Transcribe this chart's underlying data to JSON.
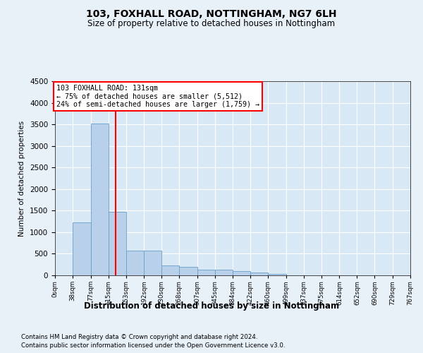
{
  "title1": "103, FOXHALL ROAD, NOTTINGHAM, NG7 6LH",
  "title2": "Size of property relative to detached houses in Nottingham",
  "xlabel": "Distribution of detached houses by size in Nottingham",
  "ylabel": "Number of detached properties",
  "annotation_line1": "103 FOXHALL ROAD: 131sqm",
  "annotation_line2": "← 75% of detached houses are smaller (5,512)",
  "annotation_line3": "24% of semi-detached houses are larger (1,759) →",
  "bar_edges": [
    0,
    38,
    77,
    115,
    153,
    192,
    230,
    268,
    307,
    345,
    384,
    422,
    460,
    499,
    537,
    575,
    614,
    652,
    690,
    729,
    767
  ],
  "bar_heights": [
    5,
    1230,
    3510,
    1470,
    570,
    570,
    230,
    200,
    130,
    130,
    100,
    65,
    40,
    5,
    5,
    0,
    5,
    0,
    0,
    0
  ],
  "bar_color": "#b8d0ea",
  "bar_edge_color": "#6a9fc8",
  "red_line_x": 131,
  "ylim": [
    0,
    4500
  ],
  "xlim": [
    0,
    767
  ],
  "yticks": [
    0,
    500,
    1000,
    1500,
    2000,
    2500,
    3000,
    3500,
    4000,
    4500
  ],
  "tick_labels": [
    "0sqm",
    "38sqm",
    "77sqm",
    "115sqm",
    "153sqm",
    "192sqm",
    "230sqm",
    "268sqm",
    "307sqm",
    "345sqm",
    "384sqm",
    "422sqm",
    "460sqm",
    "499sqm",
    "537sqm",
    "575sqm",
    "614sqm",
    "652sqm",
    "690sqm",
    "729sqm",
    "767sqm"
  ],
  "footnote1": "Contains HM Land Registry data © Crown copyright and database right 2024.",
  "footnote2": "Contains public sector information licensed under the Open Government Licence v3.0.",
  "bg_color": "#e8f0f8",
  "plot_bg_color": "#d8e8f4"
}
